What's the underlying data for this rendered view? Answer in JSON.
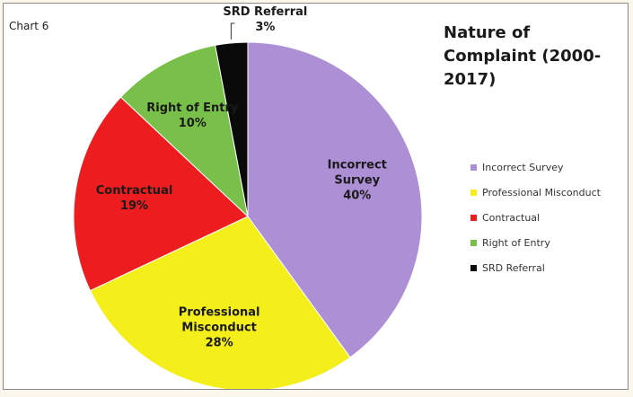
{
  "chart_data": {
    "type": "pie",
    "label": "Chart 6",
    "title": "Nature of Complaint (2000-2017)",
    "categories": [
      "Incorrect Survey",
      "Professional Misconduct",
      "Contractual",
      "Right of Entry",
      "SRD Referral"
    ],
    "values": [
      40,
      28,
      19,
      10,
      3
    ],
    "value_labels": [
      "40%",
      "28%",
      "19%",
      "10%",
      "3%"
    ],
    "colors": [
      "#ad8fd6",
      "#f4ee1a",
      "#ed1c1f",
      "#79c04b",
      "#0a0a0a"
    ],
    "legend": "right"
  }
}
